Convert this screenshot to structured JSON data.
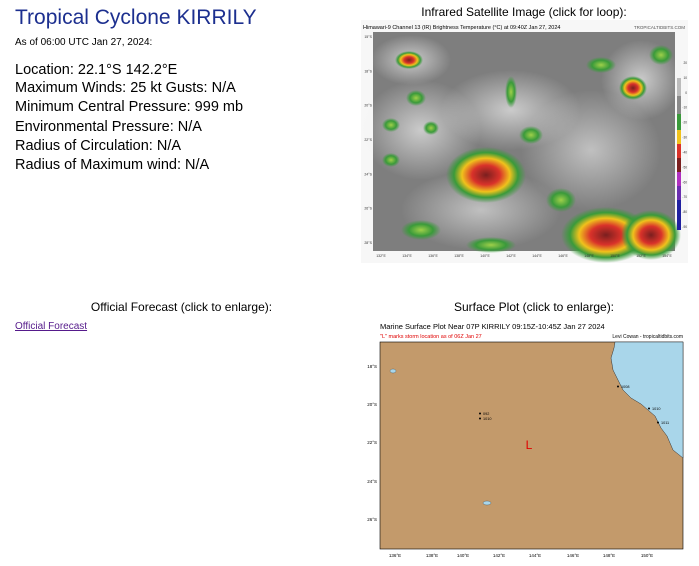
{
  "title": "Tropical Cyclone KIRRILY",
  "as_of": "As of 06:00 UTC Jan 27, 2024:",
  "info": {
    "location": "Location: 22.1°S 142.2°E",
    "winds": "Maximum Winds: 25 kt  Gusts: N/A",
    "pressure": "Minimum Central Pressure: 999 mb",
    "env_pressure": "Environmental Pressure: N/A",
    "radius_circ": "Radius of Circulation: N/A",
    "radius_max_wind": "Radius of Maximum wind: N/A"
  },
  "ir": {
    "caption": "Infrared Satellite Image (click for loop):",
    "image_title": "Himawari-9 Channel 13 (IR) Brightness Temperature (°C) at 09:40Z Jan 27, 2024",
    "watermark": "TROPICALTIDBITS.COM",
    "lat_labels": [
      "15°S",
      "18°S",
      "20°S",
      "22°S",
      "24°S",
      "26°S",
      "28°S"
    ],
    "lon_labels": [
      "132°E",
      "134°E",
      "136°E",
      "138°E",
      "140°E",
      "142°E",
      "144°E",
      "146°E",
      "148°E",
      "150°E",
      "152°E",
      "154°E"
    ],
    "colorbar_labels": [
      "20",
      "10",
      "0",
      "-10",
      "-20",
      "-30",
      "-40",
      "-50",
      "-60",
      "-70",
      "-80",
      "-90"
    ]
  },
  "forecast": {
    "caption": "Official Forecast (click to enlarge):",
    "link": "Official Forecast"
  },
  "surface": {
    "caption": "Surface Plot (click to enlarge):",
    "title": "Marine Surface Plot Near 07P KIRRILY 09:15Z-10:45Z Jan 27 2024",
    "subtitle": "\"L\" marks storm location as of 06Z Jan 27",
    "credit": "Levi Cowan - tropicaltidbits.com",
    "marker": "L",
    "lat_labels": [
      "18°S",
      "20°S",
      "22°S",
      "24°S",
      "26°S"
    ],
    "lon_labels": [
      "136°E",
      "138°E",
      "140°E",
      "142°E",
      "144°E",
      "146°E",
      "148°E",
      "150°E"
    ],
    "stations": [
      "092",
      "1010",
      "1008",
      "1011",
      "1010"
    ],
    "colors": {
      "land": "#c39a6b",
      "sea": "#a9d6ea",
      "storm_marker": "#e00000"
    }
  }
}
